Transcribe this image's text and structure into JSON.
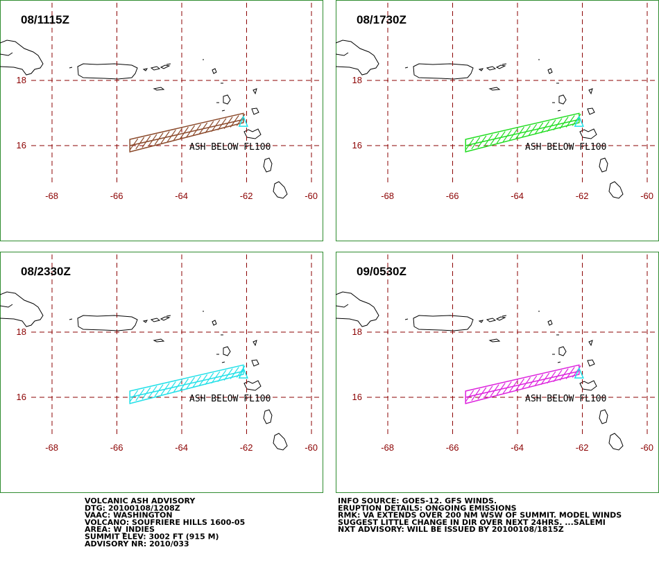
{
  "panels": [
    {
      "time": "08/1115Z",
      "color": "#8b4a2b",
      "label": "ASH BELOW FL100"
    },
    {
      "time": "08/1730Z",
      "color": "#22dd22",
      "label": "ASH BELOW FL100"
    },
    {
      "time": "08/2330Z",
      "color": "#22e0e8",
      "label": "ASH BELOW FL100"
    },
    {
      "time": "09/0530Z",
      "color": "#dd22dd",
      "label": "ASH BELOW FL100"
    }
  ],
  "map": {
    "lat_ticks": [
      18,
      16
    ],
    "lon_ticks": [
      -68,
      -66,
      -64,
      -62,
      -60
    ],
    "grid_color": "#8b0000",
    "volcano_color": "#22e0e8"
  },
  "advisory": {
    "left": [
      "VOLCANIC ASH ADVISORY",
      "DTG: 20100108/1208Z",
      "VAAC: WASHINGTON",
      "VOLCANO: SOUFRIERE HILLS 1600-05",
      "AREA: W_INDIES",
      "SUMMIT ELEV: 3002 FT (915 M)",
      "ADVISORY NR: 2010/033"
    ],
    "right": [
      "INFO SOURCE: GOES-12. GFS WINDS.",
      "ERUPTION DETAILS: ONGOING EMISSIONS",
      "RMK: VA EXTENDS OVER 200 NM WSW OF SUMMIT. MODEL WINDS",
      "SUGGEST LITTLE CHANGE IN DIR OVER NEXT 24HRS. ...SALEMI",
      "NXT ADVISORY: WILL BE ISSUED BY 20100108/1815Z"
    ]
  }
}
